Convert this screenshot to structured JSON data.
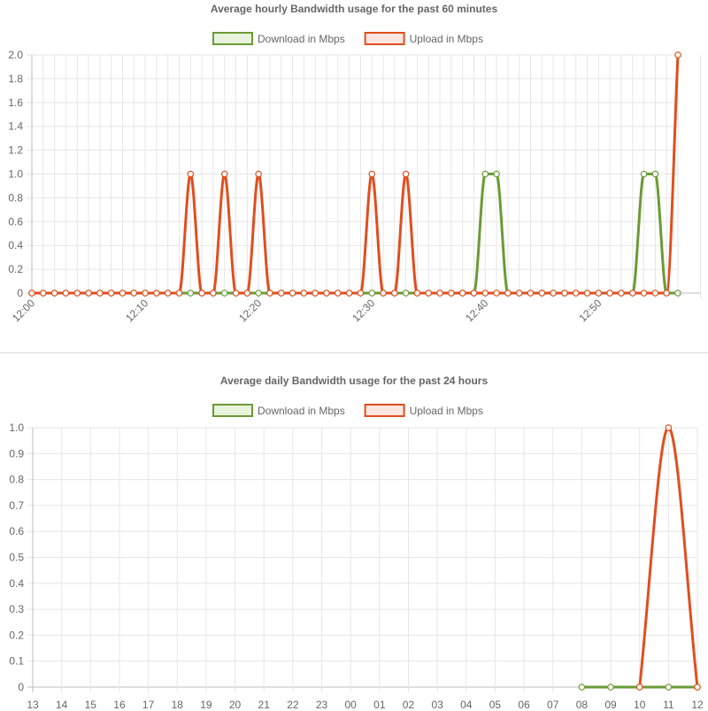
{
  "chart_data": [
    {
      "type": "line",
      "title": "Average hourly Bandwidth usage for the past 60 minutes",
      "xlabel": "",
      "ylabel": "",
      "ylim": [
        0,
        2.0
      ],
      "yticks": [
        "0",
        "0.2",
        "0.4",
        "0.6",
        "0.8",
        "1.0",
        "1.2",
        "1.4",
        "1.6",
        "1.8",
        "2.0"
      ],
      "x_tick_labels": [
        "12:00",
        "12:10",
        "12:20",
        "12:30",
        "12:40",
        "12:50"
      ],
      "x_tick_rotation": "rotated",
      "grid": true,
      "legend_position": "top-center",
      "series": [
        {
          "name": "Download in Mbps",
          "color": "#6a9b34",
          "fill": "#e8f3dc",
          "values": [
            0,
            0,
            0,
            0,
            0,
            0,
            0,
            0,
            0,
            0,
            0,
            0,
            0,
            0,
            0,
            0,
            0,
            0,
            0,
            0,
            0,
            0,
            0,
            0,
            0,
            0,
            0,
            0,
            0,
            0,
            0,
            0,
            0,
            0,
            0,
            0,
            0,
            0,
            0,
            0,
            1,
            1,
            0,
            0,
            0,
            0,
            0,
            0,
            0,
            0,
            0,
            0,
            0,
            0,
            1,
            1,
            0,
            0
          ]
        },
        {
          "name": "Upload in Mbps",
          "color": "#e04e1e",
          "fill": "#fce6df",
          "values": [
            0,
            0,
            0,
            0,
            0,
            0,
            0,
            0,
            0,
            0,
            0,
            0,
            0,
            0,
            1,
            0,
            0,
            1,
            0,
            0,
            1,
            0,
            0,
            0,
            0,
            0,
            0,
            0,
            0,
            0,
            1,
            0,
            0,
            1,
            0,
            0,
            0,
            0,
            0,
            0,
            0,
            0,
            0,
            0,
            0,
            0,
            0,
            0,
            0,
            0,
            0,
            0,
            0,
            0,
            0,
            0,
            0,
            2
          ]
        }
      ]
    },
    {
      "type": "line",
      "title": "Average daily Bandwidth usage for the past 24 hours",
      "xlabel": "",
      "ylabel": "",
      "ylim": [
        0,
        1.0
      ],
      "yticks": [
        "0",
        "0.1",
        "0.2",
        "0.3",
        "0.4",
        "0.5",
        "0.6",
        "0.7",
        "0.8",
        "0.9",
        "1.0"
      ],
      "categories": [
        "13",
        "14",
        "15",
        "16",
        "17",
        "18",
        "19",
        "20",
        "21",
        "22",
        "23",
        "00",
        "01",
        "02",
        "03",
        "04",
        "05",
        "06",
        "07",
        "08",
        "09",
        "10",
        "11",
        "12"
      ],
      "grid": true,
      "legend_position": "top-center",
      "series": [
        {
          "name": "Download in Mbps",
          "color": "#6a9b34",
          "fill": "#e8f3dc",
          "values": [
            null,
            null,
            null,
            null,
            null,
            null,
            null,
            null,
            null,
            null,
            null,
            null,
            null,
            null,
            null,
            null,
            null,
            null,
            null,
            0,
            0,
            0,
            0,
            0
          ]
        },
        {
          "name": "Upload in Mbps",
          "color": "#e04e1e",
          "fill": "#fce6df",
          "values": [
            null,
            null,
            null,
            null,
            null,
            null,
            null,
            null,
            null,
            null,
            null,
            null,
            null,
            null,
            null,
            null,
            null,
            null,
            null,
            null,
            null,
            0,
            1,
            0
          ]
        }
      ]
    }
  ]
}
